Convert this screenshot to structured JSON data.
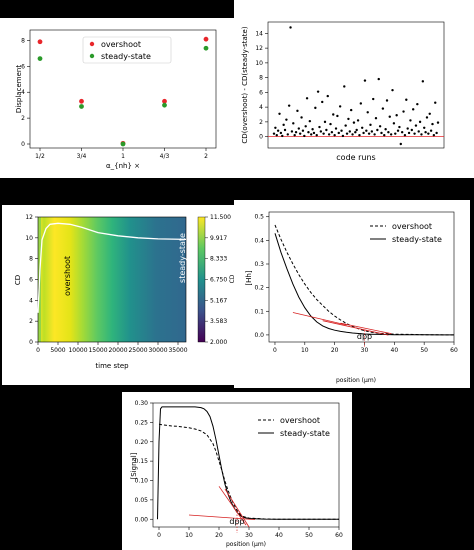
{
  "chart_data": [
    {
      "type": "scatter",
      "xlabel": "α_{nh} ×",
      "ylabel": "Displacement",
      "categories": [
        "1/2",
        "3/4",
        "1",
        "4/3",
        "2"
      ],
      "ylim": [
        0,
        8.5
      ],
      "yticks": [
        "0",
        "2",
        "4",
        "6",
        "8"
      ],
      "legend": "top-center",
      "colors": {
        "overshoot": "#e8262b",
        "steady": "#2a9a2a"
      },
      "series": [
        {
          "name": "overshoot",
          "values": [
            7.9,
            3.3,
            0.05,
            3.3,
            8.1
          ]
        },
        {
          "name": "steady-state",
          "values": [
            6.6,
            2.9,
            0.0,
            3.0,
            7.4
          ]
        }
      ]
    },
    {
      "type": "scatter",
      "xlabel": "code runs",
      "ylabel": "CD(overshoot) - CD(steady-state)",
      "ylim": [
        -1,
        15
      ],
      "yticks": [
        "0",
        "2",
        "4",
        "6",
        "8",
        "10",
        "12",
        "14"
      ],
      "reference_line": 0,
      "colors": {
        "points": "#000000",
        "ref": "#e8262b"
      },
      "values": [
        0.4,
        1.2,
        0.2,
        0.8,
        3.1,
        0.5,
        0.1,
        1.6,
        0.9,
        2.3,
        0.3,
        4.2,
        14.8,
        0.7,
        1.8,
        0.2,
        0.6,
        3.5,
        1.1,
        0.4,
        2.6,
        0.8,
        0.1,
        1.4,
        5.2,
        0.6,
        2.1,
        0.3,
        1.0,
        0.5,
        3.9,
        0.2,
        6.1,
        1.3,
        0.7,
        4.7,
        0.4,
        2.0,
        0.9,
        5.5,
        0.3,
        1.7,
        0.6,
        3.0,
        0.2,
        1.1,
        2.8,
        0.5,
        4.1,
        0.8,
        0.1,
        6.8,
        1.5,
        0.4,
        2.4,
        0.7,
        3.6,
        0.3,
        1.9,
        0.6,
        0.9,
        2.2,
        0.2,
        4.5,
        1.2,
        0.5,
        7.6,
        0.8,
        3.3,
        0.4,
        1.6,
        0.7,
        5.1,
        0.3,
        2.5,
        0.9,
        7.8,
        1.4,
        0.5,
        3.8,
        0.2,
        1.0,
        4.9,
        0.6,
        2.7,
        0.3,
        6.3,
        1.8,
        0.4,
        2.9,
        0.8,
        1.3,
        -1.0,
        0.6,
        3.4,
        0.2,
        5.0,
        1.1,
        0.5,
        2.2,
        0.9,
        3.7,
        0.4,
        1.5,
        4.4,
        0.7,
        2.0,
        0.3,
        7.5,
        1.2,
        0.6,
        2.6,
        0.4,
        3.1,
        0.8,
        1.7,
        0.2,
        4.6,
        0.5,
        1.9
      ]
    },
    {
      "type": "heatmap",
      "xlabel": "time step",
      "ylabel": "CD",
      "xticks": [
        "0",
        "5000",
        "10000",
        "15000",
        "20000",
        "25000",
        "30000",
        "35000"
      ],
      "yticks": [
        "0",
        "2",
        "4",
        "6",
        "8",
        "10",
        "12"
      ],
      "xlim": [
        0,
        37000
      ],
      "ylim": [
        0,
        12
      ],
      "colorbar": {
        "label": "CD",
        "ticks": [
          "11.500",
          "9.917",
          "8.333",
          "6.750",
          "5.167",
          "3.583",
          "2.000"
        ]
      },
      "annotations": [
        "overshoot",
        "steady-state"
      ],
      "curve": {
        "x": [
          0,
          500,
          1000,
          2000,
          3000,
          5000,
          8000,
          11000,
          15000,
          20000,
          25000,
          30000,
          37000
        ],
        "y": [
          2.8,
          7.0,
          9.8,
          10.9,
          11.3,
          11.4,
          11.3,
          11.0,
          10.5,
          10.2,
          10.0,
          9.9,
          9.85
        ]
      }
    },
    {
      "type": "line",
      "xlabel": "position (μm)",
      "ylabel": "[Hh]",
      "xlim": [
        -2,
        60
      ],
      "ylim": [
        -0.03,
        0.52
      ],
      "xticks": [
        "0",
        "10",
        "20",
        "30",
        "40",
        "50",
        "60"
      ],
      "yticks": [
        "0.0",
        "0.1",
        "0.2",
        "0.3",
        "0.4",
        "0.5"
      ],
      "legend": "top-right",
      "annotation": "dpp",
      "annotation_x": 30,
      "series": [
        {
          "name": "overshoot",
          "style": "dashed",
          "x": [
            0,
            2,
            4,
            6,
            8,
            10,
            12,
            14,
            16,
            18,
            20,
            22,
            24,
            26,
            28,
            30,
            32,
            35,
            40,
            45,
            50,
            55,
            60
          ],
          "y": [
            0.465,
            0.405,
            0.35,
            0.3,
            0.255,
            0.215,
            0.18,
            0.15,
            0.125,
            0.1,
            0.08,
            0.063,
            0.048,
            0.036,
            0.026,
            0.018,
            0.012,
            0.007,
            0.003,
            0.002,
            0.001,
            0.0005,
            0.0
          ]
        },
        {
          "name": "steady-state",
          "style": "solid",
          "x": [
            0,
            2,
            4,
            6,
            8,
            10,
            12,
            14,
            16,
            18,
            20,
            22,
            24,
            26,
            28,
            30,
            32,
            35,
            40,
            45,
            50,
            55,
            60
          ],
          "y": [
            0.43,
            0.35,
            0.28,
            0.215,
            0.16,
            0.115,
            0.08,
            0.055,
            0.038,
            0.027,
            0.02,
            0.015,
            0.011,
            0.008,
            0.006,
            0.004,
            0.003,
            0.002,
            0.001,
            0.0005,
            0.0003,
            0.0001,
            0.0
          ]
        }
      ],
      "tangents": [
        {
          "x": [
            6,
            24
          ],
          "y": [
            0.095,
            0.042
          ]
        },
        {
          "x": [
            16,
            38
          ],
          "y": [
            0.06,
            -0.001
          ]
        },
        {
          "x": [
            22,
            39
          ],
          "y": [
            0.05,
            0.005
          ]
        }
      ]
    },
    {
      "type": "line",
      "xlabel": "position (μm)",
      "ylabel": "[Signal]",
      "xlim": [
        -2,
        60
      ],
      "ylim": [
        -0.02,
        0.3
      ],
      "xticks": [
        "0",
        "10",
        "20",
        "30",
        "40",
        "50",
        "60"
      ],
      "yticks": [
        "0.00",
        "0.05",
        "0.10",
        "0.15",
        "0.20",
        "0.25",
        "0.30"
      ],
      "legend": "top-right",
      "annotation": "dpp",
      "annotation_x": 26,
      "series": [
        {
          "name": "overshoot",
          "style": "dashed",
          "x": [
            0,
            2,
            4,
            6,
            8,
            10,
            12,
            14,
            16,
            18,
            19,
            20,
            21,
            22,
            23,
            24,
            25,
            26,
            27,
            28,
            30,
            35,
            40,
            50,
            60
          ],
          "y": [
            0.245,
            0.243,
            0.241,
            0.24,
            0.238,
            0.236,
            0.233,
            0.228,
            0.218,
            0.195,
            0.175,
            0.15,
            0.125,
            0.098,
            0.075,
            0.055,
            0.037,
            0.023,
            0.013,
            0.007,
            0.003,
            0.001,
            0.0,
            0.0,
            0.0
          ]
        },
        {
          "name": "steady-state",
          "style": "solid",
          "x": [
            -0.5,
            0,
            0.5,
            1,
            2,
            4,
            8,
            12,
            14,
            15,
            16,
            17,
            18,
            19,
            20,
            21,
            22,
            23,
            24,
            25,
            26,
            27,
            28,
            30,
            35,
            40,
            50,
            60
          ],
          "y": [
            0.0,
            0.2,
            0.285,
            0.29,
            0.29,
            0.29,
            0.29,
            0.29,
            0.288,
            0.285,
            0.278,
            0.265,
            0.24,
            0.205,
            0.165,
            0.125,
            0.09,
            0.065,
            0.045,
            0.03,
            0.018,
            0.01,
            0.005,
            0.002,
            0.0005,
            0.0,
            0.0,
            0.0
          ]
        }
      ],
      "tangents": [
        {
          "x": [
            10,
            32
          ],
          "y": [
            0.011,
            -0.001
          ]
        },
        {
          "x": [
            22,
            30
          ],
          "y": [
            0.078,
            -0.02
          ]
        },
        {
          "x": [
            20,
            29
          ],
          "y": [
            0.085,
            -0.015
          ]
        }
      ]
    }
  ]
}
